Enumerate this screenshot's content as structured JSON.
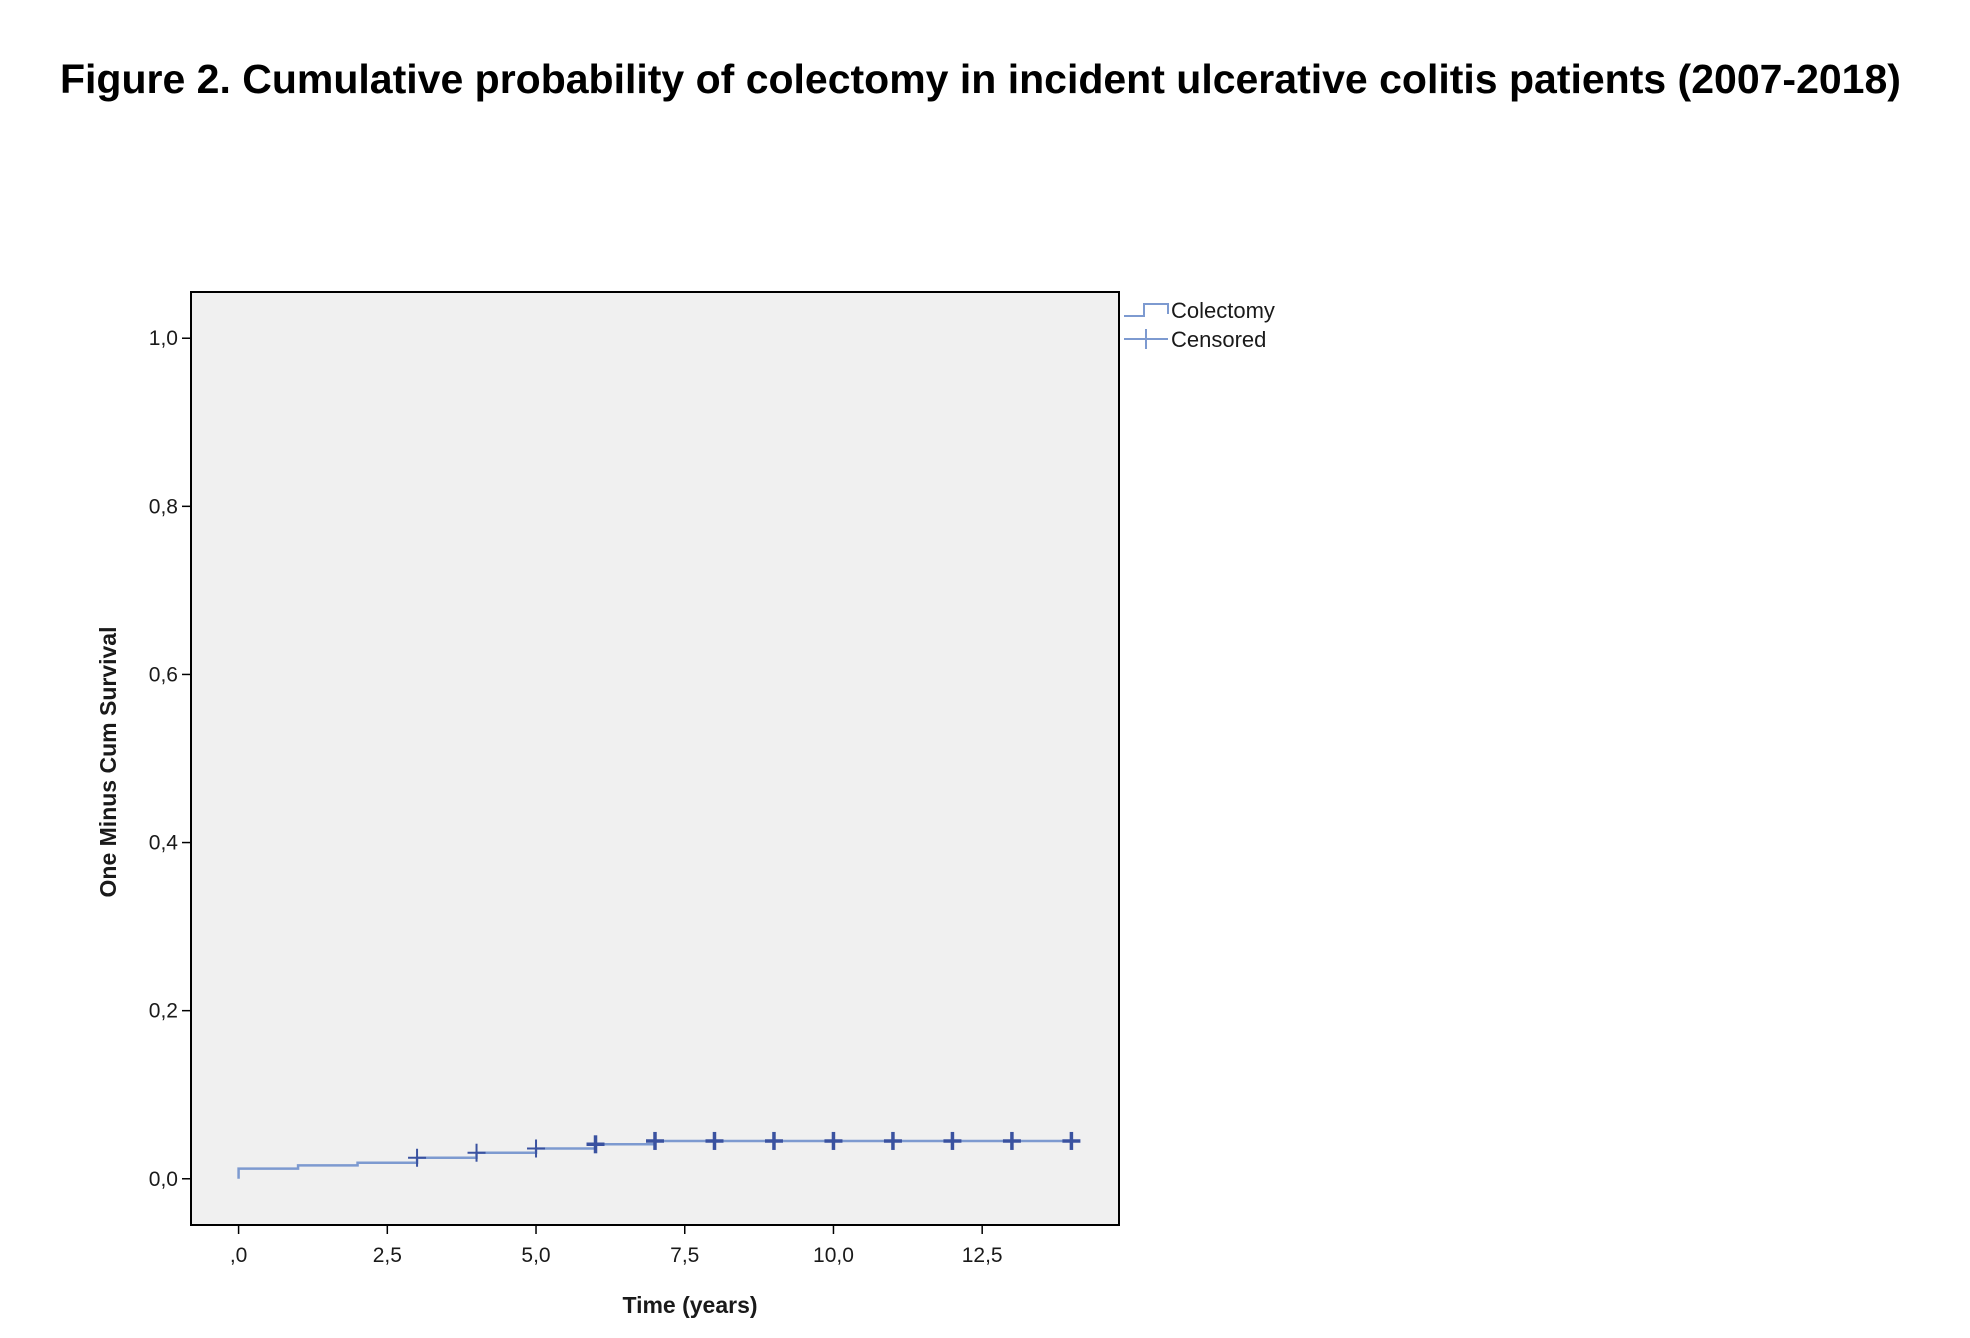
{
  "figure": {
    "title": "Figure 2. Cumulative probability of colectomy in incident ulcerative colitis patients (2007-2018)"
  },
  "chart_data": {
    "type": "line",
    "subtype": "kaplan-meier step (one minus cumulative survival)",
    "xlabel": "Time (years)",
    "ylabel": "One Minus Cum Survival",
    "xlim": [
      -0.8,
      14.8
    ],
    "ylim": [
      -0.055,
      1.055
    ],
    "x_ticks": [
      0,
      2.5,
      5,
      7.5,
      10,
      12.5
    ],
    "x_tick_labels": [
      ",0",
      "2,5",
      "5,0",
      "7,5",
      "10,0",
      "12,5"
    ],
    "y_ticks": [
      0,
      0.2,
      0.4,
      0.6,
      0.8,
      1.0
    ],
    "y_tick_labels": [
      "0,0",
      "0,2",
      "0,4",
      "0,6",
      "0,8",
      "1,0"
    ],
    "grid": false,
    "legend_position": "top-right, outside plot",
    "legend": [
      {
        "label": "Colectomy",
        "symbol": "step"
      },
      {
        "label": "Censored",
        "symbol": "plus"
      }
    ],
    "series": [
      {
        "name": "Colectomy",
        "step_x": [
          0,
          1,
          2,
          3,
          4,
          5,
          6,
          7,
          14
        ],
        "step_y": [
          0.012,
          0.016,
          0.019,
          0.025,
          0.031,
          0.036,
          0.041,
          0.045,
          0.045
        ]
      },
      {
        "name": "Censored",
        "x": [
          3,
          4,
          5,
          6,
          7,
          8,
          9,
          10,
          11,
          12,
          13,
          14
        ],
        "y": [
          0.025,
          0.031,
          0.036,
          0.041,
          0.045,
          0.045,
          0.045,
          0.045,
          0.045,
          0.045,
          0.045,
          0.045
        ]
      }
    ],
    "colors": {
      "plot_background": "#f0f0f0",
      "step_line": "#7d9ad0",
      "censor_mark": "#3a52a0"
    }
  }
}
